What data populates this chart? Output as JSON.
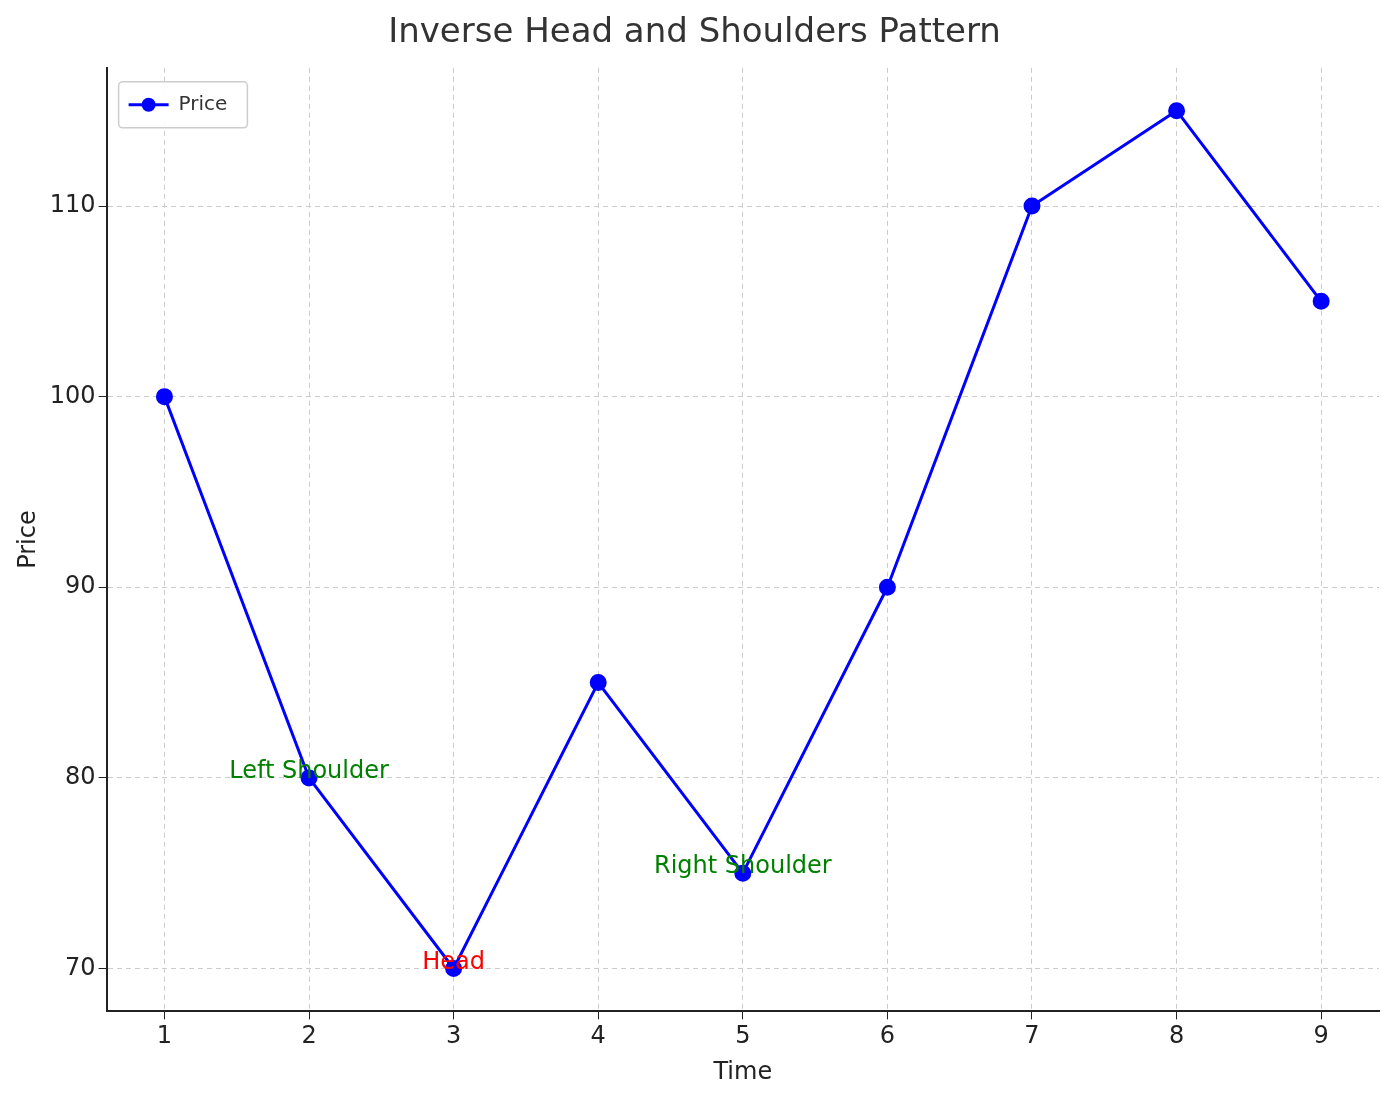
{
  "chart_data": {
    "type": "line",
    "title": "Inverse Head and Shoulders Pattern",
    "xlabel": "Time",
    "ylabel": "Price",
    "x": [
      1,
      2,
      3,
      4,
      5,
      6,
      7,
      8,
      9
    ],
    "series": [
      {
        "name": "Price",
        "color": "#0000ff",
        "values": [
          100,
          80,
          70,
          85,
          75,
          90,
          110,
          115,
          105
        ]
      }
    ],
    "xlim": [
      0.6,
      9.4
    ],
    "xticks": [
      1,
      2,
      3,
      4,
      5,
      6,
      7,
      8,
      9
    ],
    "ylim": [
      67.75,
      117.25
    ],
    "yticks": [
      70,
      80,
      90,
      100,
      110
    ],
    "grid": true,
    "legend": "top left",
    "marker": "circle",
    "line_style": "solid",
    "annotations": [
      {
        "text": "Left Shoulder",
        "x": 2,
        "y": 80
      },
      {
        "text": "Head",
        "x": 3,
        "y": 70
      },
      {
        "text": "Right Shoulder",
        "x": 5,
        "y": 75
      }
    ]
  }
}
